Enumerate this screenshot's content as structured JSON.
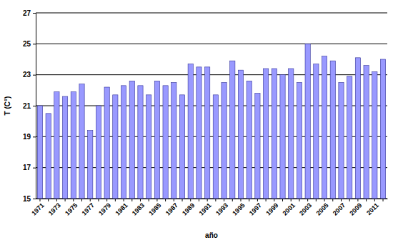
{
  "chart_data": {
    "type": "bar",
    "x_label": "año",
    "y_label": "T (C°)",
    "categories": [
      "1971",
      null,
      "1973",
      null,
      "1975",
      null,
      "1977",
      null,
      "1979",
      null,
      "1981",
      null,
      "1983",
      null,
      "1985",
      null,
      "1987",
      null,
      "1989",
      null,
      "1991",
      null,
      "1993",
      null,
      "1995",
      null,
      "1997",
      null,
      "1999",
      null,
      "2001",
      null,
      "2003",
      null,
      "2005",
      null,
      "2007",
      null,
      "2009",
      null,
      "2011",
      null
    ],
    "values": [
      21.0,
      20.5,
      21.9,
      21.6,
      21.9,
      22.4,
      19.4,
      21.0,
      22.2,
      21.7,
      22.3,
      22.6,
      22.3,
      21.7,
      22.6,
      22.3,
      22.5,
      21.7,
      23.7,
      23.5,
      23.5,
      21.7,
      22.5,
      23.9,
      23.3,
      22.6,
      21.8,
      23.4,
      23.4,
      23.0,
      23.4,
      22.5,
      25.0,
      23.7,
      24.2,
      23.9,
      22.5,
      22.9,
      24.1,
      23.6,
      23.2,
      24.0
    ],
    "color": "#9999ff",
    "ylim": [
      15,
      27
    ],
    "yticks": [
      15,
      17,
      19,
      21,
      23,
      25,
      27
    ],
    "grid": true
  }
}
